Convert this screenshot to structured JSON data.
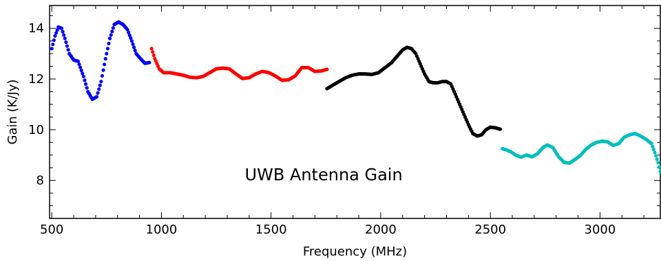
{
  "chart_data": {
    "type": "scatter",
    "title": "",
    "annotation": "UWB Antenna Gain",
    "xlabel": "Frequency (MHz)",
    "ylabel": "Gain (K/Jy)",
    "xlim": [
      490,
      3275
    ],
    "ylim": [
      6.5,
      14.9
    ],
    "x_ticks": [
      500,
      1000,
      1500,
      2000,
      2500,
      3000
    ],
    "y_ticks": [
      8,
      10,
      12,
      14
    ],
    "grid": false,
    "legend": "none",
    "series": [
      {
        "color": "#0000ff",
        "points": [
          [
            500,
            13.2
          ],
          [
            515,
            13.7
          ],
          [
            530,
            14.05
          ],
          [
            545,
            14.0
          ],
          [
            560,
            13.6
          ],
          [
            580,
            13.0
          ],
          [
            600,
            12.75
          ],
          [
            620,
            12.7
          ],
          [
            645,
            12.1
          ],
          [
            665,
            11.5
          ],
          [
            685,
            11.2
          ],
          [
            705,
            11.3
          ],
          [
            725,
            11.9
          ],
          [
            745,
            12.8
          ],
          [
            765,
            13.6
          ],
          [
            785,
            14.15
          ],
          [
            805,
            14.25
          ],
          [
            825,
            14.15
          ],
          [
            845,
            13.95
          ],
          [
            865,
            13.5
          ],
          [
            885,
            13.0
          ],
          [
            905,
            12.8
          ],
          [
            925,
            12.62
          ],
          [
            945,
            12.65
          ]
        ]
      },
      {
        "color": "#ff0000",
        "points": [
          [
            955,
            13.2
          ],
          [
            970,
            12.8
          ],
          [
            990,
            12.4
          ],
          [
            1010,
            12.25
          ],
          [
            1040,
            12.25
          ],
          [
            1070,
            12.2
          ],
          [
            1100,
            12.15
          ],
          [
            1130,
            12.07
          ],
          [
            1160,
            12.05
          ],
          [
            1190,
            12.1
          ],
          [
            1220,
            12.25
          ],
          [
            1250,
            12.4
          ],
          [
            1280,
            12.43
          ],
          [
            1310,
            12.4
          ],
          [
            1340,
            12.2
          ],
          [
            1370,
            12.02
          ],
          [
            1400,
            12.05
          ],
          [
            1430,
            12.2
          ],
          [
            1460,
            12.3
          ],
          [
            1490,
            12.25
          ],
          [
            1520,
            12.12
          ],
          [
            1550,
            11.95
          ],
          [
            1580,
            11.97
          ],
          [
            1610,
            12.12
          ],
          [
            1640,
            12.45
          ],
          [
            1670,
            12.45
          ],
          [
            1700,
            12.3
          ],
          [
            1730,
            12.32
          ],
          [
            1755,
            12.38
          ]
        ]
      },
      {
        "color": "#000000",
        "points": [
          [
            1755,
            11.62
          ],
          [
            1780,
            11.75
          ],
          [
            1810,
            11.9
          ],
          [
            1840,
            12.05
          ],
          [
            1870,
            12.15
          ],
          [
            1900,
            12.2
          ],
          [
            1930,
            12.2
          ],
          [
            1960,
            12.18
          ],
          [
            1990,
            12.25
          ],
          [
            2020,
            12.45
          ],
          [
            2050,
            12.65
          ],
          [
            2080,
            12.95
          ],
          [
            2100,
            13.15
          ],
          [
            2120,
            13.25
          ],
          [
            2140,
            13.2
          ],
          [
            2160,
            13.0
          ],
          [
            2180,
            12.6
          ],
          [
            2200,
            12.2
          ],
          [
            2220,
            11.9
          ],
          [
            2240,
            11.85
          ],
          [
            2260,
            11.85
          ],
          [
            2280,
            11.9
          ],
          [
            2300,
            11.9
          ],
          [
            2320,
            11.8
          ],
          [
            2340,
            11.4
          ],
          [
            2360,
            11.0
          ],
          [
            2380,
            10.6
          ],
          [
            2400,
            10.2
          ],
          [
            2420,
            9.85
          ],
          [
            2440,
            9.75
          ],
          [
            2460,
            9.8
          ],
          [
            2480,
            10.0
          ],
          [
            2500,
            10.1
          ],
          [
            2520,
            10.08
          ],
          [
            2545,
            10.02
          ]
        ]
      },
      {
        "color": "#00bfbf",
        "points": [
          [
            2555,
            9.25
          ],
          [
            2575,
            9.2
          ],
          [
            2595,
            9.12
          ],
          [
            2615,
            9.0
          ],
          [
            2640,
            8.92
          ],
          [
            2665,
            9.0
          ],
          [
            2690,
            8.93
          ],
          [
            2715,
            9.05
          ],
          [
            2740,
            9.3
          ],
          [
            2760,
            9.4
          ],
          [
            2785,
            9.3
          ],
          [
            2810,
            8.95
          ],
          [
            2835,
            8.72
          ],
          [
            2860,
            8.68
          ],
          [
            2885,
            8.82
          ],
          [
            2910,
            8.98
          ],
          [
            2935,
            9.22
          ],
          [
            2960,
            9.4
          ],
          [
            2985,
            9.5
          ],
          [
            3010,
            9.55
          ],
          [
            3035,
            9.52
          ],
          [
            3060,
            9.38
          ],
          [
            3085,
            9.45
          ],
          [
            3110,
            9.7
          ],
          [
            3135,
            9.8
          ],
          [
            3160,
            9.85
          ],
          [
            3185,
            9.75
          ],
          [
            3210,
            9.62
          ],
          [
            3235,
            9.45
          ],
          [
            3250,
            9.1
          ],
          [
            3265,
            8.7
          ],
          [
            3275,
            8.35
          ]
        ]
      }
    ]
  }
}
